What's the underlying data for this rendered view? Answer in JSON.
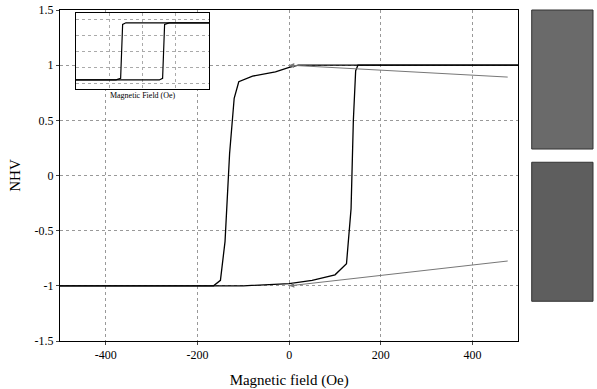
{
  "chart_data": [
    {
      "type": "line",
      "x_label": "Magnetic field (Oe)",
      "y_label": "NHV",
      "xlim": [
        -500,
        500
      ],
      "ylim": [
        -1.5,
        1.5
      ],
      "xticks": [
        -400,
        -200,
        0,
        200,
        400
      ],
      "yticks": [
        -1.5,
        -1.0,
        -0.5,
        0.0,
        0.5,
        1.0,
        1.5
      ],
      "grid": true,
      "series": [
        {
          "color": "#000000",
          "x": [
            500,
            300,
            100,
            20,
            0,
            -30,
            -80,
            -110,
            -120,
            -130,
            -140,
            -150,
            -165,
            -300,
            -500
          ],
          "values": [
            1.0,
            1.0,
            1.0,
            1.0,
            0.98,
            0.94,
            0.9,
            0.85,
            0.7,
            0.2,
            -0.6,
            -0.95,
            -1.0,
            -1.0,
            -1.0
          ]
        },
        {
          "color": "#000000",
          "x": [
            -500,
            -300,
            -100,
            0,
            50,
            100,
            125,
            135,
            140,
            145,
            150,
            300,
            500
          ],
          "values": [
            -1.0,
            -1.0,
            -1.0,
            -0.98,
            -0.95,
            -0.9,
            -0.8,
            -0.3,
            0.5,
            0.95,
            1.0,
            1.0,
            1.0
          ]
        }
      ]
    },
    {
      "type": "line",
      "x_label": "Magnetic Field (Oe)",
      "xlim": [
        -1,
        1
      ],
      "ylim": [
        -1.2,
        1.2
      ],
      "tick_labels": false,
      "grid": true,
      "series": [
        {
          "color": "#000000",
          "x": [
            1,
            0.5,
            0,
            -0.25,
            -0.3,
            -0.33,
            -0.4,
            -0.7,
            -1
          ],
          "values": [
            0.9,
            0.9,
            0.9,
            0.9,
            0.85,
            -0.85,
            -0.9,
            -0.9,
            -0.9
          ]
        },
        {
          "color": "#000000",
          "x": [
            -1,
            -0.5,
            0,
            0.25,
            0.3,
            0.33,
            0.4,
            0.7,
            1
          ],
          "values": [
            -0.9,
            -0.9,
            -0.9,
            -0.9,
            -0.85,
            0.85,
            0.9,
            0.9,
            0.9
          ]
        }
      ]
    }
  ]
}
